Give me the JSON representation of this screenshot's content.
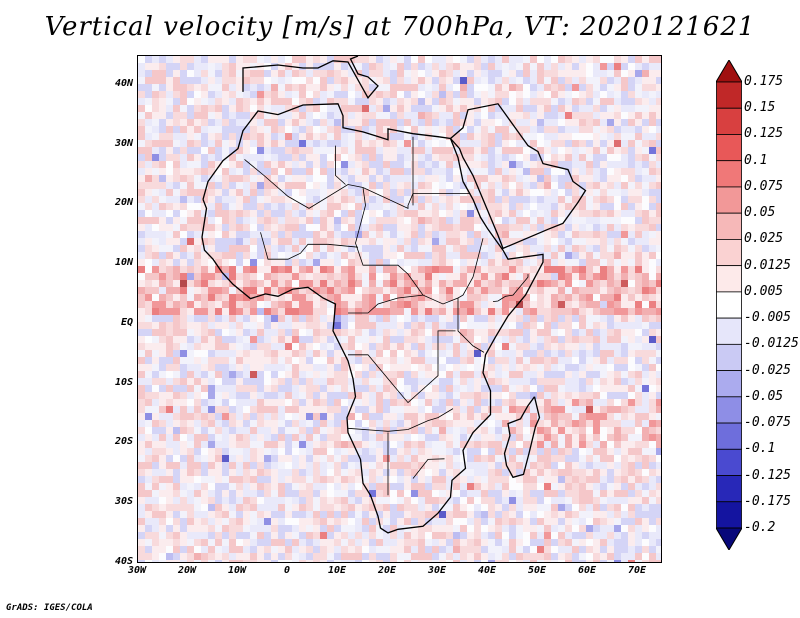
{
  "title": "Vertical velocity [m/s] at 700hPa, VT: 2020121621",
  "credit": "GrADS: IGES/COLA",
  "map": {
    "lon_range": [
      -30,
      75
    ],
    "lat_range": [
      -40,
      45
    ],
    "lat_ticks": [
      {
        "value": 40,
        "label": "40N"
      },
      {
        "value": 30,
        "label": "30N"
      },
      {
        "value": 20,
        "label": "20N"
      },
      {
        "value": 10,
        "label": "10N"
      },
      {
        "value": 0,
        "label": "EQ"
      },
      {
        "value": -10,
        "label": "10S"
      },
      {
        "value": -20,
        "label": "20S"
      },
      {
        "value": -30,
        "label": "30S"
      },
      {
        "value": -40,
        "label": "40S"
      }
    ],
    "lon_ticks": [
      {
        "value": -30,
        "label": "30W"
      },
      {
        "value": -20,
        "label": "20W"
      },
      {
        "value": -10,
        "label": "10W"
      },
      {
        "value": 0,
        "label": "0"
      },
      {
        "value": 10,
        "label": "10E"
      },
      {
        "value": 20,
        "label": "20E"
      },
      {
        "value": 30,
        "label": "30E"
      },
      {
        "value": 40,
        "label": "40E"
      },
      {
        "value": 50,
        "label": "50E"
      },
      {
        "value": 60,
        "label": "60E"
      },
      {
        "value": 70,
        "label": "70E"
      }
    ]
  },
  "colorbar": {
    "levels": [
      "0.175",
      "0.15",
      "0.125",
      "0.1",
      "0.075",
      "0.05",
      "0.025",
      "0.0125",
      "0.005",
      "-0.005",
      "-0.0125",
      "-0.025",
      "-0.05",
      "-0.075",
      "-0.1",
      "-0.125",
      "-0.175",
      "-0.2"
    ],
    "colors": [
      "#a01010",
      "#c02828",
      "#d84040",
      "#e85858",
      "#f07878",
      "#f29898",
      "#f6b8b8",
      "#fad2d2",
      "#fdeaea",
      "#ffffff",
      "#e6e6fa",
      "#cacaf4",
      "#ababee",
      "#8e8ee6",
      "#6e6edc",
      "#4a4ad0",
      "#2828b8",
      "#1414a0",
      "#08087a"
    ]
  },
  "field_colors": {
    "background": "#f2f2fb",
    "land_outline": "#000000"
  }
}
